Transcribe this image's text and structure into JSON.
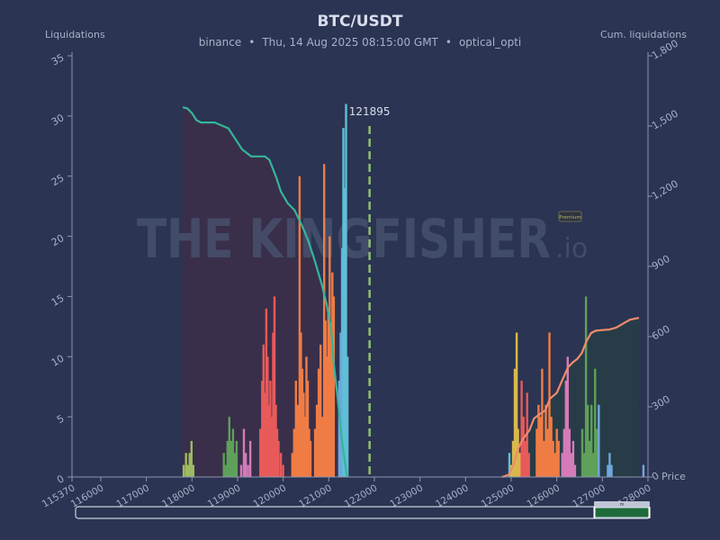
{
  "header": {
    "title": "BTC/USDT",
    "exchange": "binance",
    "datetime": "Thu, 14 Aug 2025 08:15:00 GMT",
    "user": "optical_opti",
    "separator": "•"
  },
  "axes": {
    "left_label": "Liquidations",
    "right_label": "Cum. liquidations",
    "x_label": "Price"
  },
  "watermark": {
    "text_main": "THE KINGFISHER",
    "text_suffix": ".io",
    "badge": "Premium"
  },
  "current_price": {
    "label": "121895",
    "value": 121895
  },
  "slider": {
    "handle_label": "m"
  },
  "colors": {
    "background": "#2b3452",
    "short_zone": "#3a2f4a",
    "long_zone": "#283d48",
    "cum_short_line": "#35b59a",
    "cum_long_line": "#f08c6c",
    "price_line": "#8fbf6f",
    "bar_palette": [
      "#9dba62",
      "#5fa05a",
      "#d57bb8",
      "#e85a5a",
      "#f07c45",
      "#6fa8dc",
      "#5ec0d6",
      "#d9b84c"
    ]
  },
  "chart_data": {
    "type": "bar",
    "title": "BTC/USDT",
    "xlabel": "Price",
    "ylabel": "Liquidations",
    "y2label": "Cum. liquidations",
    "xlim": [
      115370,
      128000
    ],
    "ylim": [
      0,
      35
    ],
    "y2lim": [
      0,
      1800
    ],
    "x_ticks": [
      115370,
      116000,
      117000,
      118000,
      119000,
      120000,
      121000,
      122000,
      123000,
      124000,
      125000,
      126000,
      127000,
      128000
    ],
    "y_ticks": [
      0,
      5,
      10,
      15,
      20,
      25,
      30,
      35
    ],
    "y2_ticks": [
      0,
      300,
      600,
      900,
      1200,
      1500,
      1800
    ],
    "grid": false,
    "bars": [
      {
        "x": 117820,
        "y": 1
      },
      {
        "x": 117870,
        "y": 2
      },
      {
        "x": 117910,
        "y": 1
      },
      {
        "x": 117950,
        "y": 2
      },
      {
        "x": 117990,
        "y": 3
      },
      {
        "x": 118030,
        "y": 1
      },
      {
        "x": 118700,
        "y": 2
      },
      {
        "x": 118740,
        "y": 1
      },
      {
        "x": 118780,
        "y": 3
      },
      {
        "x": 118820,
        "y": 5
      },
      {
        "x": 118860,
        "y": 3
      },
      {
        "x": 118900,
        "y": 4
      },
      {
        "x": 118940,
        "y": 2
      },
      {
        "x": 118980,
        "y": 3
      },
      {
        "x": 119080,
        "y": 1
      },
      {
        "x": 119140,
        "y": 4
      },
      {
        "x": 119180,
        "y": 2
      },
      {
        "x": 119230,
        "y": 1
      },
      {
        "x": 119280,
        "y": 3
      },
      {
        "x": 119500,
        "y": 4
      },
      {
        "x": 119540,
        "y": 8
      },
      {
        "x": 119570,
        "y": 11
      },
      {
        "x": 119600,
        "y": 7
      },
      {
        "x": 119630,
        "y": 14
      },
      {
        "x": 119660,
        "y": 10
      },
      {
        "x": 119690,
        "y": 6
      },
      {
        "x": 119720,
        "y": 8
      },
      {
        "x": 119750,
        "y": 5
      },
      {
        "x": 119780,
        "y": 12
      },
      {
        "x": 119810,
        "y": 15
      },
      {
        "x": 119840,
        "y": 6
      },
      {
        "x": 119870,
        "y": 4
      },
      {
        "x": 119900,
        "y": 3
      },
      {
        "x": 119950,
        "y": 2
      },
      {
        "x": 120000,
        "y": 1
      },
      {
        "x": 120200,
        "y": 2
      },
      {
        "x": 120240,
        "y": 4
      },
      {
        "x": 120280,
        "y": 8
      },
      {
        "x": 120320,
        "y": 6
      },
      {
        "x": 120360,
        "y": 25
      },
      {
        "x": 120390,
        "y": 12
      },
      {
        "x": 120420,
        "y": 9
      },
      {
        "x": 120450,
        "y": 7
      },
      {
        "x": 120480,
        "y": 5
      },
      {
        "x": 120510,
        "y": 10
      },
      {
        "x": 120540,
        "y": 8
      },
      {
        "x": 120570,
        "y": 4
      },
      {
        "x": 120600,
        "y": 3
      },
      {
        "x": 120700,
        "y": 4
      },
      {
        "x": 120740,
        "y": 6
      },
      {
        "x": 120780,
        "y": 9
      },
      {
        "x": 120820,
        "y": 11
      },
      {
        "x": 120860,
        "y": 5
      },
      {
        "x": 120900,
        "y": 26
      },
      {
        "x": 120930,
        "y": 13
      },
      {
        "x": 120960,
        "y": 10
      },
      {
        "x": 120990,
        "y": 14
      },
      {
        "x": 121020,
        "y": 20
      },
      {
        "x": 121050,
        "y": 12
      },
      {
        "x": 121080,
        "y": 17
      },
      {
        "x": 121110,
        "y": 15
      },
      {
        "x": 121230,
        "y": 8
      },
      {
        "x": 121260,
        "y": 12
      },
      {
        "x": 121290,
        "y": 19
      },
      {
        "x": 121320,
        "y": 29
      },
      {
        "x": 121350,
        "y": 24
      },
      {
        "x": 121380,
        "y": 31
      },
      {
        "x": 121410,
        "y": 10
      },
      {
        "x": 124960,
        "y": 2
      },
      {
        "x": 125000,
        "y": 1
      },
      {
        "x": 125040,
        "y": 3
      },
      {
        "x": 125080,
        "y": 9
      },
      {
        "x": 125120,
        "y": 12
      },
      {
        "x": 125150,
        "y": 4
      },
      {
        "x": 125190,
        "y": 2
      },
      {
        "x": 125230,
        "y": 8
      },
      {
        "x": 125270,
        "y": 5
      },
      {
        "x": 125310,
        "y": 3
      },
      {
        "x": 125350,
        "y": 7
      },
      {
        "x": 125390,
        "y": 2
      },
      {
        "x": 125560,
        "y": 4
      },
      {
        "x": 125600,
        "y": 6
      },
      {
        "x": 125640,
        "y": 5
      },
      {
        "x": 125680,
        "y": 9
      },
      {
        "x": 125720,
        "y": 3
      },
      {
        "x": 125760,
        "y": 6
      },
      {
        "x": 125800,
        "y": 4
      },
      {
        "x": 125840,
        "y": 12
      },
      {
        "x": 125880,
        "y": 5
      },
      {
        "x": 125920,
        "y": 3
      },
      {
        "x": 125960,
        "y": 2
      },
      {
        "x": 126000,
        "y": 4
      },
      {
        "x": 126040,
        "y": 3
      },
      {
        "x": 126120,
        "y": 2
      },
      {
        "x": 126160,
        "y": 4
      },
      {
        "x": 126200,
        "y": 8
      },
      {
        "x": 126240,
        "y": 10
      },
      {
        "x": 126280,
        "y": 4
      },
      {
        "x": 126320,
        "y": 2
      },
      {
        "x": 126360,
        "y": 3
      },
      {
        "x": 126400,
        "y": 1
      },
      {
        "x": 126560,
        "y": 4
      },
      {
        "x": 126600,
        "y": 2
      },
      {
        "x": 126640,
        "y": 15
      },
      {
        "x": 126680,
        "y": 6
      },
      {
        "x": 126720,
        "y": 3
      },
      {
        "x": 126760,
        "y": 6
      },
      {
        "x": 126800,
        "y": 2
      },
      {
        "x": 126840,
        "y": 9
      },
      {
        "x": 126880,
        "y": 4
      },
      {
        "x": 126920,
        "y": 6
      },
      {
        "x": 127120,
        "y": 1
      },
      {
        "x": 127160,
        "y": 2
      },
      {
        "x": 127200,
        "y": 1
      },
      {
        "x": 127900,
        "y": 1
      }
    ],
    "cum_short": [
      {
        "x": 117800,
        "y": 1580
      },
      {
        "x": 117900,
        "y": 1575
      },
      {
        "x": 118000,
        "y": 1555
      },
      {
        "x": 118100,
        "y": 1525
      },
      {
        "x": 118200,
        "y": 1515
      },
      {
        "x": 118500,
        "y": 1515
      },
      {
        "x": 118800,
        "y": 1490
      },
      {
        "x": 118950,
        "y": 1445
      },
      {
        "x": 119100,
        "y": 1400
      },
      {
        "x": 119300,
        "y": 1370
      },
      {
        "x": 119600,
        "y": 1370
      },
      {
        "x": 119700,
        "y": 1355
      },
      {
        "x": 119850,
        "y": 1280
      },
      {
        "x": 119950,
        "y": 1220
      },
      {
        "x": 120100,
        "y": 1170
      },
      {
        "x": 120250,
        "y": 1140
      },
      {
        "x": 120400,
        "y": 1080
      },
      {
        "x": 120550,
        "y": 1010
      },
      {
        "x": 120700,
        "y": 920
      },
      {
        "x": 120850,
        "y": 820
      },
      {
        "x": 120950,
        "y": 740
      },
      {
        "x": 121050,
        "y": 640
      },
      {
        "x": 121100,
        "y": 500
      },
      {
        "x": 121200,
        "y": 330
      },
      {
        "x": 121300,
        "y": 140
      },
      {
        "x": 121400,
        "y": 0
      }
    ],
    "cum_long": [
      {
        "x": 124800,
        "y": 0
      },
      {
        "x": 124950,
        "y": 10
      },
      {
        "x": 125050,
        "y": 50
      },
      {
        "x": 125150,
        "y": 120
      },
      {
        "x": 125250,
        "y": 160
      },
      {
        "x": 125400,
        "y": 200
      },
      {
        "x": 125500,
        "y": 250
      },
      {
        "x": 125600,
        "y": 265
      },
      {
        "x": 125750,
        "y": 285
      },
      {
        "x": 125850,
        "y": 335
      },
      {
        "x": 126000,
        "y": 360
      },
      {
        "x": 126100,
        "y": 405
      },
      {
        "x": 126250,
        "y": 470
      },
      {
        "x": 126350,
        "y": 490
      },
      {
        "x": 126450,
        "y": 505
      },
      {
        "x": 126550,
        "y": 530
      },
      {
        "x": 126650,
        "y": 580
      },
      {
        "x": 126750,
        "y": 615
      },
      {
        "x": 126850,
        "y": 625
      },
      {
        "x": 127000,
        "y": 628
      },
      {
        "x": 127150,
        "y": 630
      },
      {
        "x": 127300,
        "y": 638
      },
      {
        "x": 127450,
        "y": 655
      },
      {
        "x": 127600,
        "y": 672
      },
      {
        "x": 127750,
        "y": 678
      },
      {
        "x": 127800,
        "y": 680
      }
    ],
    "zones": [
      {
        "name": "short",
        "from": 117780,
        "to": 121400
      },
      {
        "name": "long",
        "from": 124800,
        "to": 127800
      }
    ],
    "current_price": 121895
  }
}
